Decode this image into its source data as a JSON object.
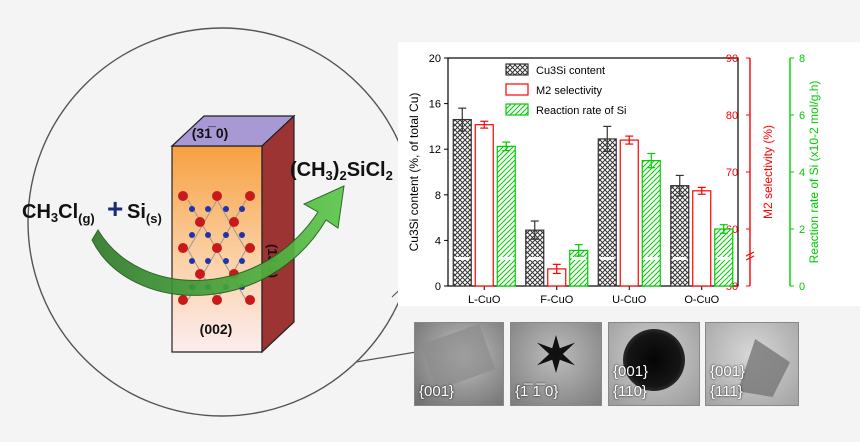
{
  "scheme": {
    "reactant_left": "CH3Cl(g)",
    "plus": "+",
    "reactant_right": "Si(s)",
    "product": "(CH3)2SiCl2",
    "facet_top": "(31̅ 0)",
    "facet_side": "(13̅ 0)",
    "facet_front": "(002)"
  },
  "chart_data": {
    "type": "bar",
    "categories": [
      "L-CuO",
      "F-CuO",
      "U-CuO",
      "O-CuO"
    ],
    "series": [
      {
        "name": "Cu3Si content",
        "axis": "left",
        "values": [
          14.6,
          4.9,
          12.9,
          8.8
        ],
        "errors": [
          1.0,
          0.8,
          1.1,
          0.9
        ],
        "color": "#333333",
        "pattern": "crosshatch"
      },
      {
        "name": "M2 selectivity",
        "axis": "right1",
        "values": [
          78.3,
          53.0,
          75.6,
          66.7
        ],
        "errors": [
          0.6,
          0.8,
          0.7,
          0.6
        ],
        "color": "#ff0000",
        "pattern": "none"
      },
      {
        "name": "Reaction rate of Si",
        "axis": "right2",
        "values": [
          4.9,
          1.25,
          4.4,
          2.0
        ],
        "errors": [
          0.15,
          0.2,
          0.25,
          0.15
        ],
        "color": "#00cc00",
        "pattern": "diagonal"
      }
    ],
    "axes": {
      "left": {
        "label": "Cu3Si content (%, of total Cu)",
        "ylim": [
          0,
          20
        ],
        "ticks": [
          "0",
          "4",
          "8",
          "12",
          "16",
          "20"
        ],
        "color": "#000000"
      },
      "right1": {
        "label": "M2 selectivity (%)",
        "ylim": [
          50,
          90
        ],
        "ticks": [
          "50",
          "60",
          "70",
          "80",
          "90"
        ],
        "color": "#ff0000"
      },
      "right2": {
        "label": "Reaction rate of Si (x10-2 mol/g.h)",
        "ylim": [
          0,
          8
        ],
        "ticks": [
          "0",
          "2",
          "4",
          "6",
          "8"
        ],
        "color": "#00cc00"
      }
    },
    "legend_position": "top-center",
    "axis_breaks": true
  },
  "tem_images": [
    {
      "labels": [
        "{001}"
      ]
    },
    {
      "labels": [
        "{1̅ 1̅ 0}"
      ]
    },
    {
      "labels": [
        "{001}",
        "{110}"
      ]
    },
    {
      "labels": [
        "{001}",
        "{111}"
      ]
    }
  ]
}
